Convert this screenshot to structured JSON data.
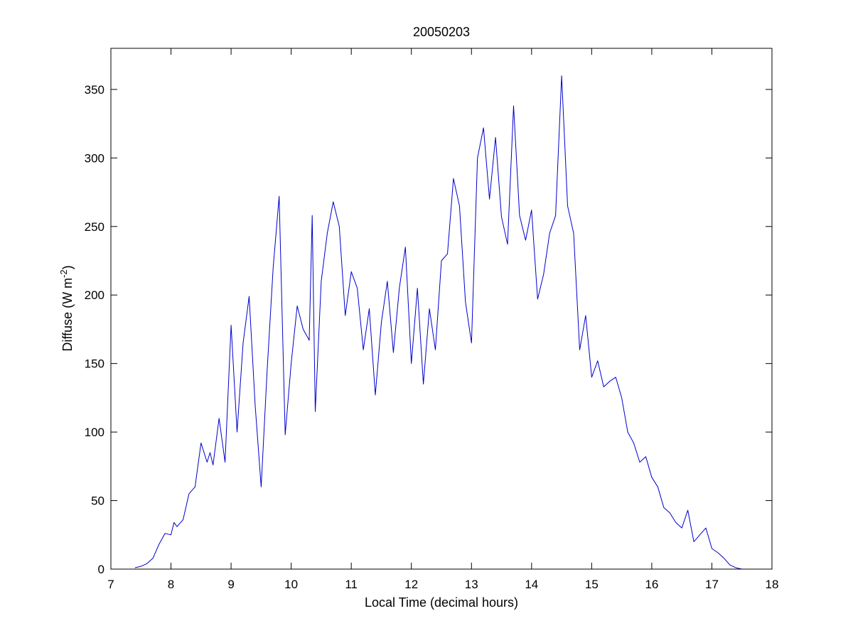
{
  "chart_data": {
    "type": "line",
    "title": "20050203",
    "xlabel": "Local Time (decimal hours)",
    "ylabel_main": "Diffuse (W m",
    "ylabel_sup": "-2",
    "ylabel_close": ")",
    "xlim": [
      7,
      18
    ],
    "ylim": [
      0,
      380
    ],
    "xticks": [
      7,
      8,
      9,
      10,
      11,
      12,
      13,
      14,
      15,
      16,
      17,
      18
    ],
    "yticks": [
      0,
      50,
      100,
      150,
      200,
      250,
      300,
      350
    ],
    "xtick_labels": [
      "7",
      "8",
      "9",
      "10",
      "11",
      "12",
      "13",
      "14",
      "15",
      "16",
      "17",
      "18"
    ],
    "ytick_labels": [
      "0",
      "50",
      "100",
      "150",
      "200",
      "250",
      "300",
      "350"
    ],
    "grid": false,
    "series": [
      {
        "color": "#0000cc",
        "x": [
          7.4,
          7.5,
          7.6,
          7.7,
          7.8,
          7.9,
          8.0,
          8.05,
          8.1,
          8.2,
          8.3,
          8.4,
          8.5,
          8.6,
          8.65,
          8.7,
          8.8,
          8.9,
          9.0,
          9.1,
          9.2,
          9.3,
          9.4,
          9.5,
          9.6,
          9.7,
          9.8,
          9.9,
          10.0,
          10.1,
          10.2,
          10.3,
          10.35,
          10.4,
          10.5,
          10.6,
          10.7,
          10.8,
          10.9,
          11.0,
          11.1,
          11.2,
          11.3,
          11.4,
          11.5,
          11.6,
          11.7,
          11.8,
          11.9,
          12.0,
          12.1,
          12.2,
          12.3,
          12.4,
          12.5,
          12.6,
          12.7,
          12.8,
          12.9,
          13.0,
          13.1,
          13.2,
          13.3,
          13.4,
          13.5,
          13.6,
          13.7,
          13.8,
          13.9,
          14.0,
          14.1,
          14.2,
          14.3,
          14.4,
          14.5,
          14.6,
          14.7,
          14.8,
          14.9,
          15.0,
          15.1,
          15.2,
          15.3,
          15.4,
          15.5,
          15.6,
          15.7,
          15.8,
          15.9,
          16.0,
          16.1,
          16.2,
          16.3,
          16.4,
          16.5,
          16.6,
          16.7,
          16.8,
          16.9,
          17.0,
          17.1,
          17.2,
          17.3,
          17.4,
          17.5
        ],
        "y": [
          1,
          2,
          4,
          8,
          18,
          26,
          25,
          34,
          31,
          36,
          55,
          60,
          92,
          78,
          85,
          76,
          110,
          78,
          178,
          100,
          165,
          199,
          120,
          60,
          145,
          220,
          272,
          98,
          150,
          192,
          175,
          167,
          258,
          115,
          210,
          245,
          268,
          250,
          185,
          217,
          205,
          160,
          190,
          127,
          180,
          210,
          158,
          205,
          235,
          150,
          205,
          135,
          190,
          160,
          225,
          230,
          285,
          265,
          195,
          165,
          300,
          322,
          270,
          315,
          257,
          237,
          338,
          258,
          240,
          262,
          197,
          215,
          245,
          258,
          360,
          265,
          245,
          160,
          185,
          140,
          152,
          133,
          137,
          140,
          125,
          100,
          92,
          78,
          82,
          67,
          60,
          45,
          41,
          34,
          30,
          43,
          20,
          25,
          30,
          15,
          12,
          8,
          3,
          1,
          0
        ]
      }
    ]
  }
}
